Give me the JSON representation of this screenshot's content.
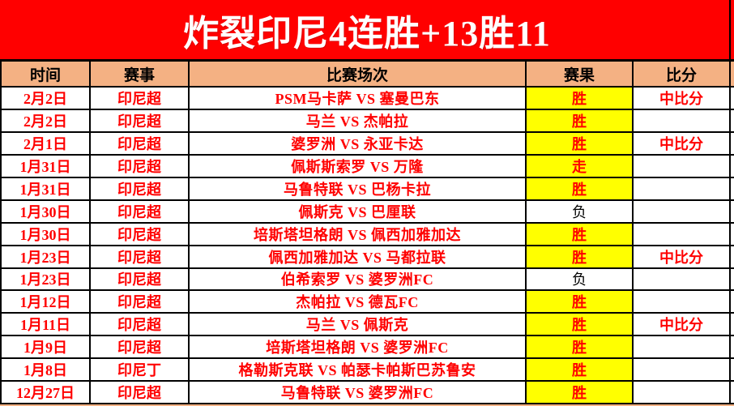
{
  "banner": {
    "title": "炸裂印尼4连胜+13胜11"
  },
  "colors": {
    "banner_bg": "#FF0000",
    "banner_text": "#FFFFFF",
    "header_bg": "#F4B183",
    "win_cell_bg": "#FFFF00",
    "data_text": "#FF0000",
    "loss_text": "#000000",
    "border": "#000000"
  },
  "table": {
    "headers": [
      "时间",
      "赛事",
      "比赛场次",
      "赛果",
      "比分"
    ],
    "rows": [
      {
        "date": "2月2日",
        "league": "印尼超",
        "match": "PSM马卡萨 VS 塞曼巴东",
        "result": "胜",
        "win": true,
        "score": "中比分"
      },
      {
        "date": "2月2日",
        "league": "印尼超",
        "match": "马兰 VS 杰帕拉",
        "result": "胜",
        "win": true,
        "score": ""
      },
      {
        "date": "2月1日",
        "league": "印尼超",
        "match": "婆罗洲 VS 永亚卡达",
        "result": "胜",
        "win": true,
        "score": "中比分"
      },
      {
        "date": "1月31日",
        "league": "印尼超",
        "match": "佩斯斯索罗 VS 万隆",
        "result": "走",
        "win": true,
        "score": ""
      },
      {
        "date": "1月31日",
        "league": "印尼超",
        "match": "马鲁特联 VS 巴杨卡拉",
        "result": "胜",
        "win": true,
        "score": ""
      },
      {
        "date": "1月30日",
        "league": "印尼超",
        "match": "佩斯克 VS 巴厘联",
        "result": "负",
        "win": false,
        "score": ""
      },
      {
        "date": "1月30日",
        "league": "印尼超",
        "match": "培斯塔坦格朗 VS 佩西加雅加达",
        "result": "胜",
        "win": true,
        "score": ""
      },
      {
        "date": "1月23日",
        "league": "印尼超",
        "match": "佩西加雅加达 VS 马都拉联",
        "result": "胜",
        "win": true,
        "score": "中比分"
      },
      {
        "date": "1月23日",
        "league": "印尼超",
        "match": "伯希索罗 VS 婆罗洲FC",
        "result": "负",
        "win": false,
        "score": ""
      },
      {
        "date": "1月12日",
        "league": "印尼超",
        "match": "杰帕拉 VS 德瓦FC",
        "result": "胜",
        "win": true,
        "score": ""
      },
      {
        "date": "1月11日",
        "league": "印尼超",
        "match": "马兰 VS 佩斯克",
        "result": "胜",
        "win": true,
        "score": "中比分"
      },
      {
        "date": "1月9日",
        "league": "印尼超",
        "match": "培斯塔坦格朗 VS 婆罗洲FC",
        "result": "胜",
        "win": true,
        "score": ""
      },
      {
        "date": "1月8日",
        "league": "印尼丁",
        "match": "格勒斯克联 VS 帕瑟卡帕斯巴苏鲁安",
        "result": "胜",
        "win": true,
        "score": ""
      },
      {
        "date": "12月27日",
        "league": "印尼超",
        "match": "马鲁特联 VS 婆罗洲FC",
        "result": "胜",
        "win": true,
        "score": ""
      }
    ]
  }
}
